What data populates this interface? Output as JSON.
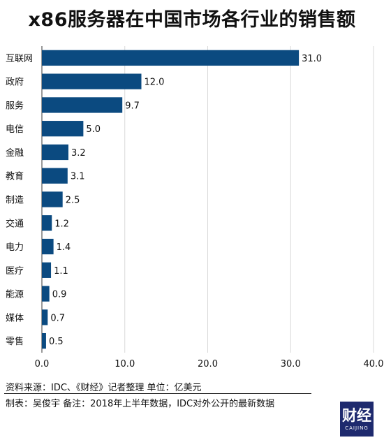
{
  "chart_data": {
    "type": "bar",
    "orientation": "horizontal",
    "title": "x86服务器在中国市场各行业的销售额",
    "categories": [
      "互联网",
      "政府",
      "服务",
      "电信",
      "金融",
      "教育",
      "制造",
      "交通",
      "电力",
      "医疗",
      "能源",
      "媒体",
      "零售"
    ],
    "values": [
      31.0,
      12.0,
      9.7,
      5.0,
      3.2,
      3.1,
      2.5,
      1.2,
      1.4,
      1.1,
      0.9,
      0.7,
      0.5
    ],
    "value_labels": [
      "31.0",
      "12.0",
      "9.7",
      "5.0",
      "3.2",
      "3.1",
      "2.5",
      "1.2",
      "1.4",
      "1.1",
      "0.9",
      "0.7",
      "0.5"
    ],
    "xlim": [
      0,
      40
    ],
    "x_ticks": [
      0,
      10,
      20,
      30,
      40
    ],
    "x_tick_labels": [
      "0.0",
      "10.0",
      "20.0",
      "30.0",
      "40.0"
    ],
    "xlabel": "",
    "ylabel": "",
    "grid": "vertical",
    "legend": "none",
    "bar_color": "#0b4a80"
  },
  "footer": {
    "source": "资料来源：IDC、《财经》记者整理    单位：亿美元",
    "note": "制表：吴俊宇  备注：2018年上半年数据，IDC对外公开的最新数据"
  },
  "logo": {
    "mark": "财经",
    "sub": "CAIJING"
  }
}
